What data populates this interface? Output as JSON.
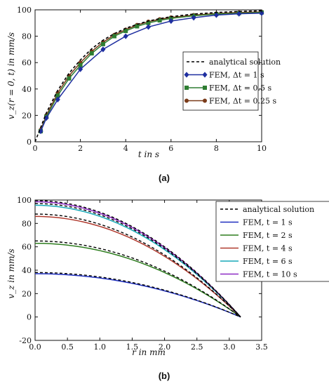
{
  "chart_data": [
    {
      "type": "line",
      "caption": "(a)",
      "xlabel": "t in s",
      "ylabel": "v_z(r = 0, t) in mm/s",
      "xlim": [
        0,
        10
      ],
      "ylim": [
        0,
        100
      ],
      "xticks": [
        0,
        2,
        4,
        6,
        8,
        10
      ],
      "yticks": [
        0,
        20,
        40,
        60,
        80,
        100
      ],
      "grid": false,
      "legend_position": "center-right",
      "series": [
        {
          "name": "analytical solution",
          "color": "#000000",
          "style": "dashed",
          "marker": "none",
          "x": [
            0,
            0.5,
            1,
            1.5,
            2,
            2.5,
            3,
            3.5,
            4,
            4.5,
            5,
            5.5,
            6,
            7,
            8,
            9,
            10
          ],
          "y": [
            0,
            22,
            39,
            52,
            62,
            70.5,
            77,
            82,
            86,
            89,
            91.5,
            93.3,
            94.8,
            96.8,
            98,
            98.8,
            99.3
          ]
        },
        {
          "name": "FEM, Δt = 1 s",
          "color": "#1f2fa0",
          "style": "solid",
          "marker": "diamond",
          "x": [
            0.25,
            0.5,
            1,
            2,
            3,
            4,
            5,
            6,
            7,
            8,
            9,
            10
          ],
          "y": [
            8,
            18,
            32,
            55,
            70,
            80,
            87,
            91.5,
            94,
            96,
            97,
            97.5
          ]
        },
        {
          "name": "FEM, Δt = 0.5 s",
          "color": "#2e7d32",
          "style": "solid",
          "marker": "square",
          "x": [
            0.25,
            0.5,
            1,
            1.5,
            2,
            2.5,
            3,
            3.5,
            4,
            4.5,
            5,
            5.5,
            6,
            7,
            8,
            9,
            10
          ],
          "y": [
            8,
            19,
            35,
            48,
            58,
            67,
            74,
            80,
            84,
            87.5,
            90,
            92,
            93.5,
            95.5,
            96.8,
            97.5,
            98
          ]
        },
        {
          "name": "FEM, Δt = 0.25 s",
          "color": "#7a3b1a",
          "style": "solid",
          "marker": "circle",
          "x": [
            0.25,
            0.5,
            1,
            1.5,
            2,
            2.5,
            3,
            3.5,
            4,
            4.5,
            5,
            5.5,
            6,
            7,
            8,
            9,
            10
          ],
          "y": [
            9,
            20,
            37,
            50,
            60,
            68.5,
            75.5,
            81,
            85,
            88.5,
            91,
            92.8,
            94.2,
            96,
            97.2,
            98,
            98.4
          ]
        }
      ]
    },
    {
      "type": "line",
      "caption": "(b)",
      "xlabel": "r in mm",
      "ylabel": "v_z in mm/s",
      "xlim": [
        0,
        3.5
      ],
      "ylim": [
        -20,
        100
      ],
      "xticks": [
        0,
        0.5,
        1.0,
        1.5,
        2.0,
        2.5,
        3.0,
        3.5
      ],
      "xtick_labels": [
        "0.0",
        "0.5",
        "1.0",
        "1.5",
        "2.0",
        "2.5",
        "3.0",
        "3.5"
      ],
      "yticks": [
        -20,
        0,
        20,
        40,
        60,
        80,
        100
      ],
      "grid": false,
      "legend_position": "top-right",
      "r_max": 3.175,
      "series": [
        {
          "name": "analytical solution",
          "color": "#000000",
          "style": "dashed",
          "center_values": [
            38,
            65,
            88,
            97,
            99.5
          ]
        },
        {
          "name": "FEM, t = 1 s",
          "color": "#1f2fbf",
          "style": "solid",
          "center_value": 37
        },
        {
          "name": "FEM, t = 2 s",
          "color": "#2e7d1f",
          "style": "solid",
          "center_value": 63
        },
        {
          "name": "FEM, t = 4 s",
          "color": "#b03a2e",
          "style": "solid",
          "center_value": 86
        },
        {
          "name": "FEM, t = 6 s",
          "color": "#17a9b8",
          "style": "solid",
          "center_value": 95.5
        },
        {
          "name": "FEM, t = 10 s",
          "color": "#8e2bc4",
          "style": "solid",
          "center_value": 98.5
        }
      ]
    }
  ]
}
